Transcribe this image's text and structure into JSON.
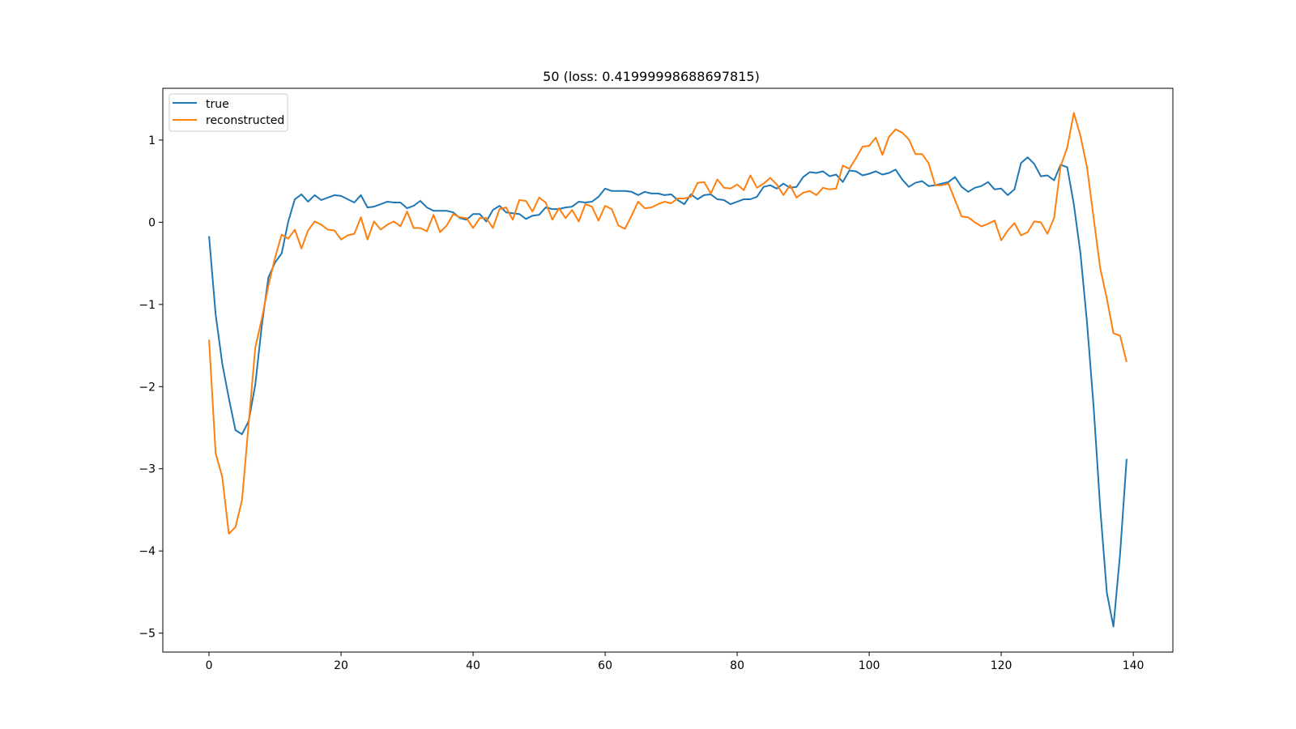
{
  "chart_data": {
    "type": "line",
    "title": "50 (loss: 0.41999998688697815)",
    "xlabel": "",
    "ylabel": "",
    "xlim": [
      -7,
      146
    ],
    "ylim": [
      -5.23,
      1.63
    ],
    "xticks": [
      0,
      20,
      40,
      60,
      80,
      100,
      120,
      140
    ],
    "yticks": [
      1,
      0,
      -1,
      -2,
      -3,
      -4,
      -5
    ],
    "ytick_labels": [
      "1",
      "0",
      "−1",
      "−2",
      "−3",
      "−4",
      "−5"
    ],
    "grid": false,
    "legend": "top-left",
    "series": [
      {
        "name": "true",
        "color": "#1f77b4",
        "values": [
          -0.17,
          -1.12,
          -1.72,
          -2.14,
          -2.53,
          -2.58,
          -2.42,
          -1.98,
          -1.25,
          -0.67,
          -0.49,
          -0.38,
          0.01,
          0.28,
          0.34,
          0.25,
          0.33,
          0.27,
          0.3,
          0.33,
          0.32,
          0.28,
          0.24,
          0.33,
          0.18,
          0.19,
          0.22,
          0.25,
          0.24,
          0.24,
          0.17,
          0.2,
          0.26,
          0.18,
          0.14,
          0.14,
          0.14,
          0.12,
          0.05,
          0.03,
          0.1,
          0.1,
          0.01,
          0.15,
          0.2,
          0.12,
          0.11,
          0.1,
          0.04,
          0.08,
          0.09,
          0.18,
          0.16,
          0.16,
          0.18,
          0.19,
          0.25,
          0.24,
          0.25,
          0.31,
          0.41,
          0.38,
          0.38,
          0.38,
          0.37,
          0.33,
          0.37,
          0.35,
          0.35,
          0.33,
          0.34,
          0.27,
          0.22,
          0.34,
          0.28,
          0.33,
          0.34,
          0.28,
          0.27,
          0.22,
          0.25,
          0.28,
          0.28,
          0.31,
          0.43,
          0.45,
          0.41,
          0.47,
          0.42,
          0.43,
          0.55,
          0.61,
          0.6,
          0.62,
          0.56,
          0.58,
          0.49,
          0.63,
          0.62,
          0.57,
          0.59,
          0.62,
          0.58,
          0.6,
          0.64,
          0.52,
          0.43,
          0.48,
          0.5,
          0.44,
          0.45,
          0.47,
          0.49,
          0.55,
          0.43,
          0.37,
          0.42,
          0.44,
          0.49,
          0.4,
          0.41,
          0.33,
          0.4,
          0.72,
          0.79,
          0.71,
          0.56,
          0.57,
          0.51,
          0.7,
          0.67,
          0.22,
          -0.38,
          -1.22,
          -2.25,
          -3.48,
          -4.51,
          -4.92,
          -4.04,
          -2.88
        ]
      },
      {
        "name": "reconstructed",
        "color": "#ff7f0e",
        "values": [
          -1.43,
          -2.81,
          -3.1,
          -3.79,
          -3.71,
          -3.38,
          -2.45,
          -1.53,
          -1.17,
          -0.77,
          -0.43,
          -0.15,
          -0.2,
          -0.09,
          -0.32,
          -0.1,
          0.01,
          -0.03,
          -0.09,
          -0.1,
          -0.21,
          -0.16,
          -0.14,
          0.06,
          -0.21,
          0.01,
          -0.09,
          -0.03,
          0.01,
          -0.05,
          0.13,
          -0.07,
          -0.07,
          -0.11,
          0.09,
          -0.12,
          -0.04,
          0.1,
          0.06,
          0.05,
          -0.07,
          0.05,
          0.05,
          -0.07,
          0.16,
          0.18,
          0.03,
          0.27,
          0.26,
          0.13,
          0.3,
          0.24,
          0.03,
          0.17,
          0.05,
          0.15,
          0.01,
          0.22,
          0.19,
          0.02,
          0.2,
          0.16,
          -0.04,
          -0.08,
          0.08,
          0.25,
          0.17,
          0.18,
          0.22,
          0.25,
          0.23,
          0.29,
          0.29,
          0.31,
          0.48,
          0.49,
          0.35,
          0.52,
          0.42,
          0.41,
          0.46,
          0.39,
          0.57,
          0.42,
          0.47,
          0.54,
          0.46,
          0.33,
          0.45,
          0.3,
          0.36,
          0.38,
          0.33,
          0.42,
          0.4,
          0.41,
          0.69,
          0.65,
          0.78,
          0.92,
          0.93,
          1.03,
          0.82,
          1.04,
          1.13,
          1.09,
          1.01,
          0.83,
          0.83,
          0.72,
          0.45,
          0.45,
          0.47,
          0.27,
          0.07,
          0.06,
          0.0,
          -0.05,
          -0.02,
          0.02,
          -0.22,
          -0.1,
          -0.01,
          -0.16,
          -0.12,
          0.01,
          0.0,
          -0.14,
          0.05,
          0.68,
          0.91,
          1.33,
          1.05,
          0.67,
          0.05,
          -0.56,
          -0.93,
          -1.35,
          -1.38,
          -1.7
        ]
      }
    ]
  }
}
